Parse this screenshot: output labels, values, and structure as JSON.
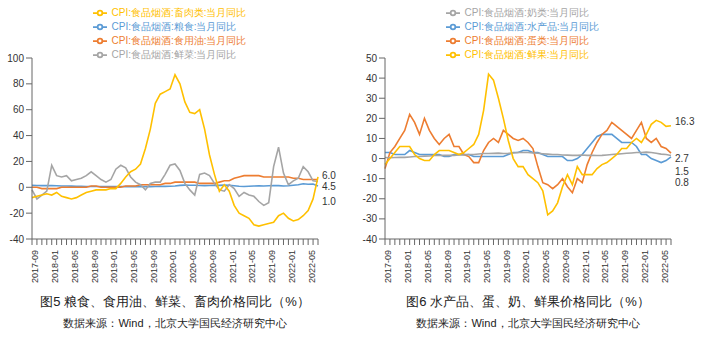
{
  "chart_data": [
    {
      "type": "line",
      "title": "图5 粮食、食用油、鲜菜、畜肉价格同比（%）",
      "source": "数据来源：Wind，北京大学国民经济研究中心",
      "categories": [
        "2017-09",
        null,
        null,
        null,
        "2018-01",
        null,
        null,
        null,
        "2018-05",
        null,
        null,
        null,
        "2018-09",
        null,
        null,
        null,
        "2019-01",
        null,
        null,
        null,
        "2019-05",
        null,
        null,
        null,
        "2019-09",
        null,
        null,
        null,
        "2020-01",
        null,
        null,
        null,
        "2020-05",
        null,
        null,
        null,
        "2020-09",
        null,
        null,
        null,
        "2021-01",
        null,
        null,
        null,
        "2021-05",
        null,
        null,
        null,
        "2021-09",
        null,
        null,
        null,
        "2022-01",
        null,
        null,
        null,
        "2022-05",
        null,
        null
      ],
      "series": [
        {
          "name": "CPI:食品烟酒:粮食:当月同比",
          "color": "#5b9bd5",
          "values": [
            1.5,
            1.4,
            1.3,
            1.3,
            1.3,
            1.2,
            1.0,
            1.0,
            0.9,
            0.8,
            0.7,
            0.6,
            0.6,
            0.6,
            0.6,
            0.6,
            0.6,
            0.6,
            0.6,
            0.5,
            0.5,
            0.5,
            0.5,
            0.6,
            0.5,
            0.6,
            0.7,
            0.7,
            0.8,
            1.0,
            1.5,
            1.7,
            1.6,
            1.6,
            1.4,
            1.3,
            1.4,
            1.5,
            1.5,
            1.7,
            1.6,
            1.2,
            0.8,
            0.6,
            0.8,
            1.0,
            1.1,
            1.0,
            1.2,
            1.3,
            1.3,
            1.0,
            1.2,
            1.6,
            2.0,
            2.7,
            2.3,
            2.5,
            1.0
          ]
        },
        {
          "name": "CPI:食品烟酒:食用油:当月同比",
          "color": "#ed7d31",
          "values": [
            0,
            0,
            -1,
            -1,
            -1,
            -1,
            0,
            0,
            0,
            0,
            0,
            0,
            1,
            1,
            0,
            0,
            0,
            0,
            0,
            1,
            1,
            1,
            2,
            2,
            2,
            2,
            2,
            3,
            3,
            4,
            4,
            4,
            4,
            4,
            3,
            3,
            3,
            3,
            4,
            5,
            5,
            7,
            8,
            9,
            9,
            9,
            9,
            8,
            8,
            8,
            8,
            8,
            8,
            7,
            7,
            6,
            6,
            6,
            6.0
          ]
        },
        {
          "name": "CPI:食品烟酒:鲜菜:当月同比",
          "color": "#a5a5a5",
          "values": [
            -2,
            -9,
            -6,
            -3,
            17,
            9,
            8,
            9,
            5,
            6,
            7,
            9,
            12,
            9,
            6,
            4,
            6,
            14,
            17,
            15,
            8,
            4,
            2,
            -2,
            3,
            4,
            4,
            10,
            17,
            18,
            13,
            3,
            -2,
            -6,
            10,
            11,
            9,
            3,
            -2,
            -3,
            2,
            -1,
            -7,
            -4,
            -6,
            -7,
            -11,
            -14,
            -12,
            16,
            31,
            11,
            2,
            5,
            7,
            16,
            12,
            5,
            4.5
          ]
        },
        {
          "name": "CPI:食品烟酒:畜肉类:当月同比",
          "color": "#ffc000",
          "values": [
            -8,
            -7,
            -6,
            -5,
            -6,
            -4,
            -7,
            -8,
            -9,
            -8,
            -6,
            -4,
            -3,
            -2,
            -2,
            -2,
            -1,
            -1,
            3,
            8,
            12,
            14,
            18,
            30,
            45,
            65,
            72,
            74,
            76,
            87,
            80,
            66,
            58,
            57,
            60,
            45,
            25,
            10,
            -3,
            2,
            -3,
            -14,
            -20,
            -22,
            -24,
            -29,
            -30,
            -29,
            -28,
            -27,
            -22,
            -20,
            -24,
            -26,
            -25,
            -22,
            -18,
            -9,
            8
          ]
        }
      ],
      "annotations": [
        {
          "series": "CPI:食品烟酒:食用油:当月同比",
          "text": "6.0"
        },
        {
          "series": "CPI:食品烟酒:鲜菜:当月同比",
          "text": "4.5"
        },
        {
          "series": "CPI:食品烟酒:粮食:当月同比",
          "text": "1.0"
        }
      ],
      "ylim": [
        -40,
        100
      ],
      "yticks": [
        -40,
        -20,
        0,
        20,
        40,
        60,
        80,
        100
      ],
      "grid": false,
      "legend": "top"
    },
    {
      "type": "line",
      "title": "图6 水产品、蛋、奶、鲜果价格同比（%）",
      "source": "数据来源：Wind，北京大学国民经济研究中心",
      "categories": [
        "2017-09",
        null,
        null,
        null,
        "2018-01",
        null,
        null,
        null,
        "2018-05",
        null,
        null,
        null,
        "2018-09",
        null,
        null,
        null,
        "2019-01",
        null,
        null,
        null,
        "2019-05",
        null,
        null,
        null,
        "2019-09",
        null,
        null,
        null,
        "2020-01",
        null,
        null,
        null,
        "2020-05",
        null,
        null,
        null,
        "2020-09",
        null,
        null,
        null,
        "2021-01",
        null,
        null,
        null,
        "2021-05",
        null,
        null,
        null,
        "2021-09",
        null,
        null,
        null,
        "2022-01",
        null,
        null,
        null,
        "2022-05",
        null,
        null
      ],
      "series": [
        {
          "name": "CPI:食品烟酒:水产品:当月同比",
          "color": "#5b9bd5",
          "values": [
            3,
            3,
            2,
            2,
            2,
            4,
            3,
            2,
            2,
            2,
            2,
            2,
            1,
            1,
            2,
            2,
            2,
            2,
            1,
            1,
            1,
            1,
            1,
            1,
            1,
            2,
            3,
            3,
            4,
            4,
            3,
            3,
            2,
            1,
            1,
            1,
            1,
            -1,
            -1,
            0,
            2,
            5,
            8,
            11,
            12,
            12,
            12,
            10,
            8,
            8,
            8,
            6,
            2,
            2,
            0,
            -1,
            -2,
            -1,
            0.8
          ]
        },
        {
          "name": "CPI:食品烟酒:蛋类:当月同比",
          "color": "#ed7d31",
          "values": [
            -5,
            3,
            6,
            10,
            14,
            22,
            18,
            12,
            20,
            14,
            10,
            7,
            10,
            12,
            6,
            6,
            2,
            1,
            -2,
            -2,
            4,
            8,
            10,
            8,
            14,
            12,
            10,
            9,
            10,
            8,
            5,
            -4,
            -12,
            -13,
            -15,
            -13,
            -10,
            -14,
            -17,
            -10,
            -12,
            -3,
            3,
            8,
            12,
            14,
            18,
            16,
            14,
            12,
            10,
            14,
            18,
            10,
            8,
            10,
            6,
            5,
            2.7
          ]
        },
        {
          "name": "CPI:食品烟酒:奶类:当月同比",
          "color": "#a5a5a5",
          "values": [
            0.5,
            0.4,
            0.5,
            0.6,
            0.6,
            0.8,
            1,
            1,
            1.2,
            1.3,
            1.5,
            1.5,
            1.6,
            1.6,
            1.6,
            1.8,
            1.8,
            2,
            2,
            2.3,
            2.5,
            2.5,
            2.6,
            2.7,
            2.5,
            2.6,
            2.8,
            3,
            3,
            3,
            2.8,
            2.6,
            2.4,
            2.2,
            2,
            2,
            1.8,
            1.7,
            1.6,
            1.6,
            1.8,
            1.6,
            1.6,
            1.5,
            1.6,
            1.8,
            2,
            2.2,
            2.4,
            2.6,
            2.8,
            3,
            3,
            3.2,
            3,
            2.6,
            2.2,
            2,
            1.5
          ]
        },
        {
          "name": "CPI:食品烟酒:鲜果:当月同比",
          "color": "#ffc000",
          "values": [
            -3,
            0,
            3,
            6,
            6,
            6,
            2,
            0,
            -1,
            -1,
            2,
            4,
            4,
            4,
            3,
            2,
            3,
            5,
            7,
            12,
            24,
            42,
            39,
            30,
            20,
            9,
            0,
            -4,
            -4,
            -8,
            -10,
            -12,
            -16,
            -28,
            -26,
            -22,
            -14,
            -8,
            -13,
            -4,
            -8,
            -8,
            -8,
            -5,
            -3,
            -2,
            0,
            2,
            5,
            5,
            8,
            10,
            8,
            12,
            17,
            19,
            18,
            16,
            16.3
          ]
        }
      ],
      "annotations": [
        {
          "series": "CPI:食品烟酒:鲜果:当月同比",
          "text": "16.3"
        },
        {
          "series": "CPI:食品烟酒:蛋类:当月同比",
          "text": "2.7"
        },
        {
          "series": "CPI:食品烟酒:奶类:当月同比",
          "text": "1.5"
        },
        {
          "series": "CPI:食品烟酒:水产品:当月同比",
          "text": "0.8"
        }
      ],
      "ylim": [
        -40,
        50
      ],
      "yticks": [
        -40,
        -30,
        -20,
        -10,
        0,
        10,
        20,
        30,
        40,
        50
      ],
      "grid": false,
      "legend": "top"
    }
  ]
}
